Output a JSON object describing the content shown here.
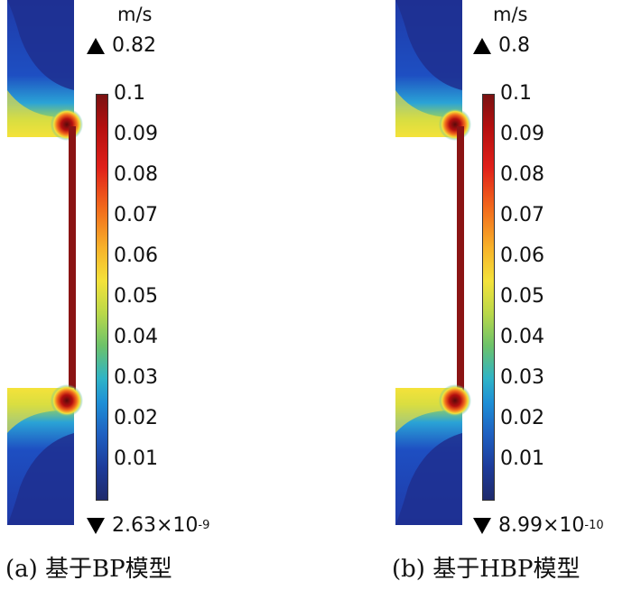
{
  "panels": [
    {
      "unit": "m/s",
      "max_label": "0.82",
      "min_label_base": "2.63×10",
      "min_label_exp": "-9",
      "ticks": [
        "0.1",
        "0.09",
        "0.08",
        "0.07",
        "0.06",
        "0.05",
        "0.04",
        "0.03",
        "0.02",
        "0.01"
      ],
      "caption": "(a) 基于BP模型"
    },
    {
      "unit": "m/s",
      "max_label": "0.8",
      "min_label_base": "8.99×10",
      "min_label_exp": "-10",
      "ticks": [
        "0.1",
        "0.09",
        "0.08",
        "0.07",
        "0.06",
        "0.05",
        "0.04",
        "0.03",
        "0.02",
        "0.01"
      ],
      "caption": "(b) 基于HBP模型"
    }
  ],
  "colors": {
    "deep_blue": "#1e2a9c",
    "cyan": "#2fb4c6",
    "yellow": "#f4e23a",
    "red": "#e0201a",
    "dark_red": "#7a1212"
  }
}
